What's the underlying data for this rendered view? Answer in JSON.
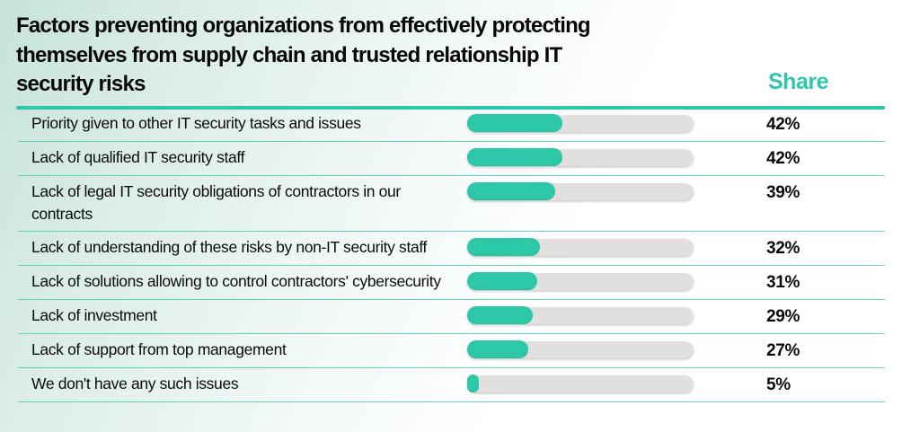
{
  "header": {
    "title": "Factors preventing organizations from effectively protecting themselves from supply chain and trusted relationship IT security risks",
    "share_header": "Share"
  },
  "colors": {
    "accent_teal": "#2cc8a7",
    "separator_teal": "#5fd3bc",
    "bar_track_gray": "#e1e0de",
    "background_tint": "#c6e3da",
    "text_black": "#0b0b0b"
  },
  "chart_data": {
    "type": "bar",
    "orientation": "horizontal",
    "title": "Factors preventing organizations from effectively protecting themselves from supply chain and trusted relationship IT security risks",
    "value_column_label": "Share",
    "unit": "%",
    "xlim": [
      0,
      100
    ],
    "grid": false,
    "legend": false,
    "categories": [
      "Priority given to other IT security tasks and issues",
      "Lack of qualified IT security staff",
      "Lack of legal IT security obligations of contractors in our contracts",
      "Lack of understanding of these risks by non-IT security staff",
      "Lack of solutions allowing to control contractors' cybersecurity",
      "Lack of investment",
      "Lack of support from top management",
      "We don't have any such issues"
    ],
    "values": [
      42,
      42,
      39,
      32,
      31,
      29,
      27,
      5
    ],
    "value_labels": [
      "42%",
      "42%",
      "39%",
      "32%",
      "31%",
      "29%",
      "27%",
      "5%"
    ]
  }
}
